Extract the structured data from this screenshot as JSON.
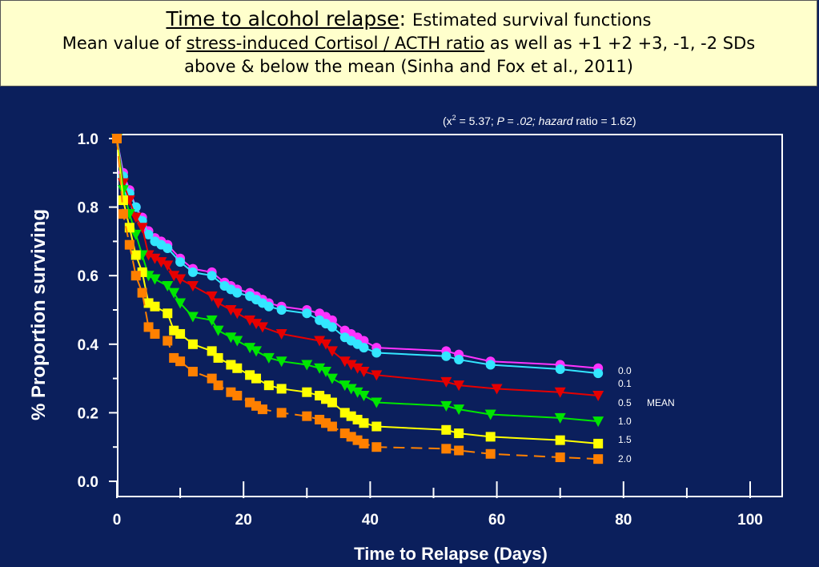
{
  "header": {
    "title_main": "Time to alcohol relapse",
    "title_colon": ":",
    "title_sub": "Estimated survival functions",
    "line2_prefix": "Mean value of ",
    "line2_underlined": "stress-induced Cortisol / ACTH ratio",
    "line2_suffix": " as well as +1 +2 +3, -1, -2 SDs",
    "line3": "above & below the mean (Sinha and Fox et al., 2011)"
  },
  "chart_data": {
    "type": "line",
    "stat_annotation": {
      "open": "(x",
      "sup": "2",
      "eq": " = 5.37; ",
      "p": "P = .02; hazard",
      "ratio": " ratio = 1.62)"
    },
    "xlabel": "Time to Relapse (Days)",
    "ylabel": "% Proportion surviving",
    "xlim": [
      0,
      100
    ],
    "ylim": [
      0,
      1.0
    ],
    "x_ticks": [
      "0",
      "20",
      "40",
      "60",
      "80",
      "100"
    ],
    "y_ticks": [
      "0.0",
      "0.2",
      "0.4",
      "0.6",
      "0.8",
      "1.0"
    ],
    "legend_extra": "MEAN",
    "series": [
      {
        "name": "0.0",
        "color": "#ff33ff",
        "marker": "circle",
        "dash": false,
        "x": [
          0,
          1,
          2,
          3,
          4,
          5,
          6,
          7,
          8,
          10,
          12,
          15,
          17,
          18,
          19,
          21,
          22,
          23,
          24,
          26,
          30,
          32,
          33,
          34,
          36,
          37,
          38,
          39,
          41,
          52,
          54,
          59,
          70,
          76
        ],
        "y": [
          1.0,
          0.9,
          0.85,
          0.8,
          0.77,
          0.73,
          0.71,
          0.7,
          0.69,
          0.65,
          0.62,
          0.61,
          0.58,
          0.57,
          0.56,
          0.55,
          0.54,
          0.53,
          0.52,
          0.51,
          0.5,
          0.49,
          0.48,
          0.47,
          0.44,
          0.43,
          0.42,
          0.41,
          0.39,
          0.38,
          0.37,
          0.35,
          0.34,
          0.33
        ]
      },
      {
        "name": "0.1",
        "color": "#33e6ff",
        "marker": "circle",
        "dash": false,
        "x": [
          0,
          1,
          2,
          3,
          4,
          5,
          6,
          7,
          8,
          10,
          12,
          15,
          17,
          18,
          19,
          21,
          22,
          23,
          24,
          26,
          30,
          32,
          33,
          34,
          36,
          37,
          38,
          39,
          41,
          52,
          54,
          59,
          70,
          76
        ],
        "y": [
          1.0,
          0.89,
          0.84,
          0.8,
          0.76,
          0.72,
          0.7,
          0.69,
          0.68,
          0.64,
          0.61,
          0.6,
          0.57,
          0.56,
          0.55,
          0.54,
          0.53,
          0.52,
          0.51,
          0.5,
          0.49,
          0.47,
          0.46,
          0.45,
          0.42,
          0.41,
          0.4,
          0.39,
          0.375,
          0.365,
          0.355,
          0.34,
          0.327,
          0.315
        ]
      },
      {
        "name": "0.5",
        "color": "#e60000",
        "marker": "triangle",
        "dash": false,
        "x": [
          0,
          1,
          2,
          3,
          4,
          5,
          6,
          7,
          8,
          9,
          10,
          12,
          15,
          16,
          18,
          19,
          21,
          22,
          23,
          26,
          32,
          33,
          34,
          36,
          37,
          38,
          39,
          41,
          52,
          54,
          60,
          70,
          76
        ],
        "y": [
          1.0,
          0.87,
          0.82,
          0.77,
          0.74,
          0.66,
          0.65,
          0.64,
          0.63,
          0.6,
          0.59,
          0.57,
          0.54,
          0.52,
          0.5,
          0.49,
          0.47,
          0.46,
          0.45,
          0.43,
          0.41,
          0.4,
          0.38,
          0.35,
          0.34,
          0.33,
          0.32,
          0.31,
          0.29,
          0.28,
          0.27,
          0.26,
          0.25
        ]
      },
      {
        "name": "1.0",
        "color": "#00e600",
        "marker": "triangle",
        "dash": false,
        "x": [
          0,
          1,
          2,
          3,
          4,
          5,
          6,
          8,
          9,
          10,
          12,
          15,
          16,
          18,
          19,
          21,
          22,
          24,
          26,
          30,
          32,
          33,
          34,
          36,
          37,
          38,
          39,
          41,
          52,
          54,
          59,
          70,
          76
        ],
        "y": [
          1.0,
          0.85,
          0.78,
          0.72,
          0.66,
          0.6,
          0.59,
          0.57,
          0.55,
          0.52,
          0.48,
          0.47,
          0.44,
          0.42,
          0.41,
          0.39,
          0.38,
          0.36,
          0.35,
          0.34,
          0.33,
          0.32,
          0.3,
          0.28,
          0.27,
          0.26,
          0.25,
          0.23,
          0.22,
          0.21,
          0.195,
          0.185,
          0.175
        ]
      },
      {
        "name": "1.5",
        "color": "#ffff00",
        "marker": "square",
        "dash": false,
        "x": [
          0,
          1,
          2,
          3,
          4,
          5,
          6,
          8,
          9,
          10,
          12,
          15,
          16,
          18,
          19,
          21,
          22,
          24,
          26,
          30,
          32,
          33,
          34,
          36,
          37,
          38,
          39,
          41,
          52,
          54,
          59,
          70,
          76
        ],
        "y": [
          1.0,
          0.82,
          0.74,
          0.66,
          0.61,
          0.52,
          0.51,
          0.49,
          0.44,
          0.43,
          0.4,
          0.38,
          0.36,
          0.34,
          0.33,
          0.31,
          0.3,
          0.28,
          0.27,
          0.26,
          0.25,
          0.24,
          0.23,
          0.2,
          0.19,
          0.18,
          0.17,
          0.16,
          0.15,
          0.14,
          0.13,
          0.12,
          0.11
        ]
      },
      {
        "name": "2.0",
        "color": "#ff8000",
        "marker": "square",
        "dash": true,
        "x": [
          0,
          1,
          2,
          3,
          4,
          5,
          6,
          8,
          9,
          10,
          12,
          15,
          16,
          18,
          19,
          21,
          22,
          23,
          26,
          30,
          32,
          33,
          34,
          36,
          37,
          38,
          39,
          41,
          52,
          54,
          59,
          70,
          76
        ],
        "y": [
          1.0,
          0.78,
          0.69,
          0.6,
          0.55,
          0.45,
          0.43,
          0.41,
          0.36,
          0.35,
          0.32,
          0.3,
          0.28,
          0.26,
          0.25,
          0.23,
          0.22,
          0.21,
          0.2,
          0.19,
          0.18,
          0.17,
          0.16,
          0.14,
          0.13,
          0.12,
          0.11,
          0.1,
          0.095,
          0.09,
          0.08,
          0.07,
          0.065
        ]
      }
    ]
  }
}
